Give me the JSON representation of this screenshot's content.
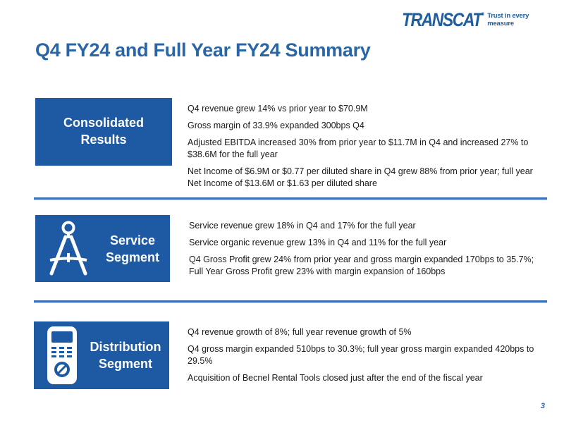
{
  "logo": {
    "wordmark": "TRANSCAT",
    "registered": "®",
    "tagline": "Trust in every measure"
  },
  "title": "Q4 FY24 and Full Year FY24 Summary",
  "sections": [
    {
      "label_line1": "Consolidated",
      "label_line2": "Results",
      "bullets": [
        "Q4 revenue grew 14% vs prior year to $70.9M",
        "Gross margin of 33.9% expanded 300bps Q4",
        "Adjusted EBITDA increased 30% from prior year to $11.7M in Q4 and increased 27% to $38.6M for the full year",
        "Net Income of $6.9M or $0.77 per diluted share in Q4 grew 88% from prior year; full year Net Income of $13.6M or $1.63 per diluted share"
      ]
    },
    {
      "label_line1": "Service",
      "label_line2": "Segment",
      "icon": "drafting-compass-icon",
      "bullets": [
        "Service revenue grew 18% in Q4 and 17% for the full year",
        "Service organic revenue grew 13% in Q4 and 11% for the full year",
        "Q4 Gross Profit grew 24% from prior year and gross margin expanded 170bps to 35.7%; Full Year Gross Profit grew 23% with margin expansion of 160bps"
      ]
    },
    {
      "label_line1": "Distribution",
      "label_line2": "Segment",
      "icon": "handheld-meter-icon",
      "bullets": [
        "Q4 revenue growth of 8%; full year revenue growth of 5%",
        "Q4 gross margin expanded 510bps to 30.3%; full year gross margin expanded 420bps to 29.5%",
        "Acquisition of Becnel Rental Tools closed just after the end of the fiscal year"
      ]
    }
  ],
  "page_number": "3",
  "colors": {
    "brand_blue": "#1d5aa3",
    "title_blue": "#2a66a6"
  }
}
